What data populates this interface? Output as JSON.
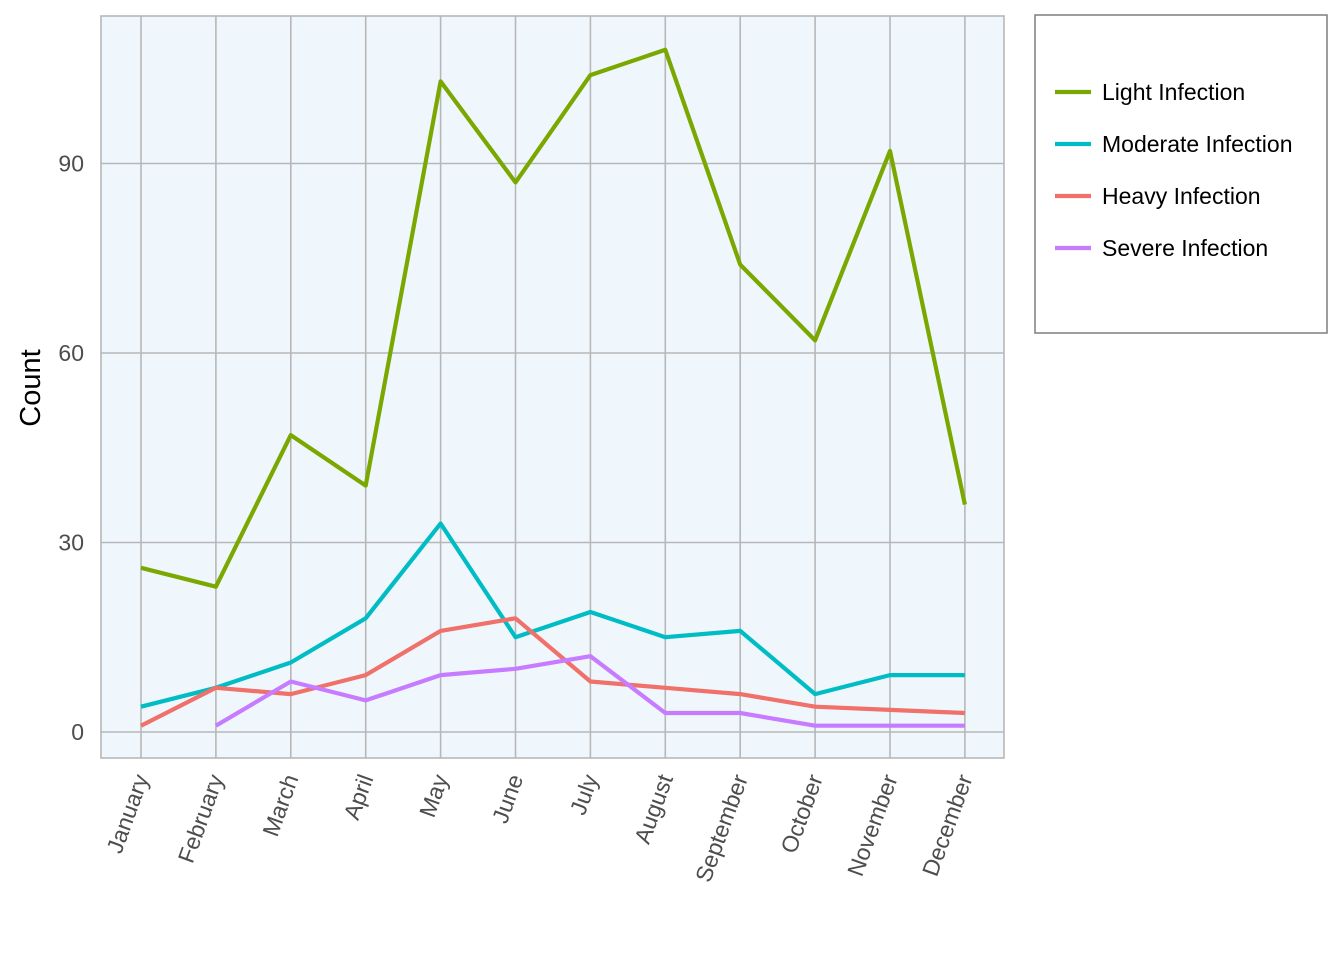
{
  "chart_data": {
    "type": "line",
    "title": "",
    "xlabel": "",
    "ylabel": "Count",
    "categories": [
      "January",
      "February",
      "March",
      "April",
      "May",
      "June",
      "July",
      "August",
      "September",
      "October",
      "November",
      "December"
    ],
    "ylim": [
      -4,
      113.5
    ],
    "yticks": [
      0,
      30,
      60,
      90
    ],
    "grid": true,
    "background_color": "#eff7fd",
    "grid_color": "#b7b7b7",
    "legend_position": "right",
    "series": [
      {
        "name": "Light Infection",
        "color": "#7aa800",
        "values": [
          26,
          23,
          47,
          39,
          103,
          87,
          104,
          108,
          74,
          62,
          92,
          36
        ]
      },
      {
        "name": "Moderate Infection",
        "color": "#00bcc4",
        "values": [
          4,
          7,
          11,
          18,
          33,
          15,
          19,
          15,
          16,
          6,
          9,
          9
        ]
      },
      {
        "name": "Heavy Infection",
        "color": "#f0706a",
        "values": [
          1,
          7,
          6,
          9,
          16,
          18,
          8,
          7,
          6,
          4,
          3.5,
          3
        ]
      },
      {
        "name": "Severe Infection",
        "color": "#c77cff",
        "values": [
          null,
          1,
          8,
          5,
          9,
          10,
          12,
          3,
          3,
          1,
          1,
          1
        ]
      }
    ]
  }
}
